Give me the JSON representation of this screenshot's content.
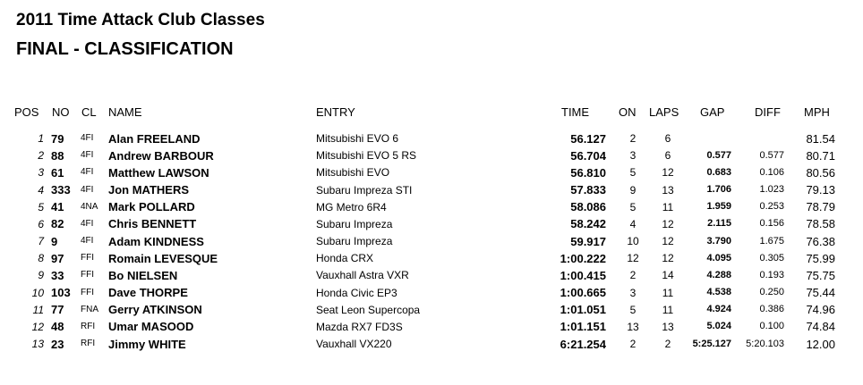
{
  "header": {
    "title": "2011 Time Attack Club Classes",
    "subtitle": "FINAL - CLASSIFICATION"
  },
  "table": {
    "columns": [
      "POS",
      "NO",
      "CL",
      "NAME",
      "ENTRY",
      "TIME",
      "ON",
      "LAPS",
      "GAP",
      "DIFF",
      "MPH"
    ],
    "rows": [
      {
        "pos": "1",
        "no": "79",
        "cl": "4FI",
        "name": "Alan FREELAND",
        "entry": "Mitsubishi EVO 6",
        "time": "56.127",
        "on": "2",
        "laps": "6",
        "mph": "81.54"
      },
      {
        "pos": "2",
        "no": "88",
        "cl": "4FI",
        "name": "Andrew BARBOUR",
        "entry": "Mitsubishi EVO 5 RS",
        "time": "56.704",
        "on": "3",
        "laps": "6",
        "gap": "0.577",
        "diff": "0.577",
        "mph": "80.71"
      },
      {
        "pos": "3",
        "no": "61",
        "cl": "4FI",
        "name": "Matthew LAWSON",
        "entry": "Mitsubishi EVO",
        "time": "56.810",
        "on": "5",
        "laps": "12",
        "gap": "0.683",
        "diff": "0.106",
        "mph": "80.56"
      },
      {
        "pos": "4",
        "no": "333",
        "cl": "4FI",
        "name": "Jon MATHERS",
        "entry": "Subaru Impreza STI",
        "time": "57.833",
        "on": "9",
        "laps": "13",
        "gap": "1.706",
        "diff": "1.023",
        "mph": "79.13"
      },
      {
        "pos": "5",
        "no": "41",
        "cl": "4NA",
        "name": "Mark POLLARD",
        "entry": "MG Metro 6R4",
        "time": "58.086",
        "on": "5",
        "laps": "11",
        "gap": "1.959",
        "diff": "0.253",
        "mph": "78.79"
      },
      {
        "pos": "6",
        "no": "82",
        "cl": "4FI",
        "name": "Chris BENNETT",
        "entry": "Subaru Impreza",
        "time": "58.242",
        "on": "4",
        "laps": "12",
        "gap": "2.115",
        "diff": "0.156",
        "mph": "78.58"
      },
      {
        "pos": "7",
        "no": "9",
        "cl": "4FI",
        "name": "Adam KINDNESS",
        "entry": "Subaru Impreza",
        "time": "59.917",
        "on": "10",
        "laps": "12",
        "gap": "3.790",
        "diff": "1.675",
        "mph": "76.38"
      },
      {
        "pos": "8",
        "no": "97",
        "cl": "FFI",
        "name": "Romain LEVESQUE",
        "entry": "Honda CRX",
        "time": "1:00.222",
        "on": "12",
        "laps": "12",
        "gap": "4.095",
        "diff": "0.305",
        "mph": "75.99"
      },
      {
        "pos": "9",
        "no": "33",
        "cl": "FFI",
        "name": "Bo NIELSEN",
        "entry": "Vauxhall Astra VXR",
        "time": "1:00.415",
        "on": "2",
        "laps": "14",
        "gap": "4.288",
        "diff": "0.193",
        "mph": "75.75"
      },
      {
        "pos": "10",
        "no": "103",
        "cl": "FFI",
        "name": "Dave THORPE",
        "entry": "Honda Civic EP3",
        "time": "1:00.665",
        "on": "3",
        "laps": "11",
        "gap": "4.538",
        "diff": "0.250",
        "mph": "75.44"
      },
      {
        "pos": "11",
        "no": "77",
        "cl": "FNA",
        "name": "Gerry ATKINSON",
        "entry": "Seat Leon Supercopa",
        "time": "1:01.051",
        "on": "5",
        "laps": "11",
        "gap": "4.924",
        "diff": "0.386",
        "mph": "74.96"
      },
      {
        "pos": "12",
        "no": "48",
        "cl": "RFI",
        "name": "Umar MASOOD",
        "entry": "Mazda RX7 FD3S",
        "time": "1:01.151",
        "on": "13",
        "laps": "13",
        "gap": "5.024",
        "diff": "0.100",
        "mph": "74.84"
      },
      {
        "pos": "13",
        "no": "23",
        "cl": "RFI",
        "name": "Jimmy WHITE",
        "entry": "Vauxhall VX220",
        "time": "6:21.254",
        "on": "2",
        "laps": "2",
        "gap": "5:25.127",
        "diff": "5:20.103",
        "mph": "12.00"
      }
    ]
  }
}
